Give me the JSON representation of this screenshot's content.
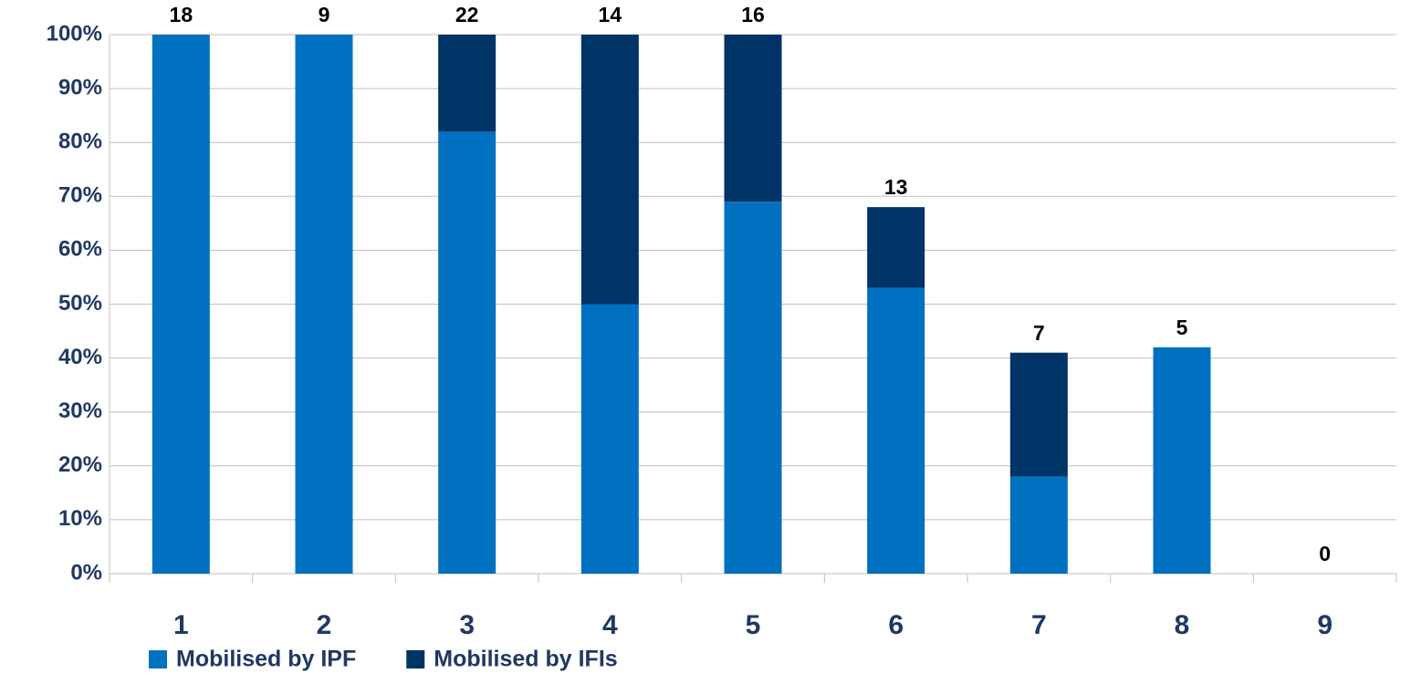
{
  "chart_data": {
    "type": "stacked_bar",
    "categories": [
      "1",
      "2",
      "3",
      "4",
      "5",
      "6",
      "7",
      "8",
      "9"
    ],
    "series": [
      {
        "name": "Mobilised by IPF",
        "color": "#0070c0",
        "values": [
          100,
          100,
          82,
          50,
          69,
          53,
          18,
          42,
          0
        ]
      },
      {
        "name": "Mobilised by IFIs",
        "color": "#003366",
        "values": [
          0,
          0,
          18,
          50,
          31,
          15,
          23,
          0,
          0
        ]
      }
    ],
    "bar_labels": [
      18,
      9,
      22,
      14,
      16,
      13,
      7,
      5,
      0
    ],
    "ylim": [
      0,
      100
    ],
    "yticks": [
      {
        "value": 0,
        "label": "0%"
      },
      {
        "value": 10,
        "label": "10%"
      },
      {
        "value": 20,
        "label": "20%"
      },
      {
        "value": 30,
        "label": "30%"
      },
      {
        "value": 40,
        "label": "40%"
      },
      {
        "value": 50,
        "label": "50%"
      },
      {
        "value": 60,
        "label": "60%"
      },
      {
        "value": 70,
        "label": "70%"
      },
      {
        "value": 80,
        "label": "80%"
      },
      {
        "value": 90,
        "label": "90%"
      },
      {
        "value": 100,
        "label": "100%"
      }
    ],
    "grid": true,
    "legend": "bottom-left"
  }
}
